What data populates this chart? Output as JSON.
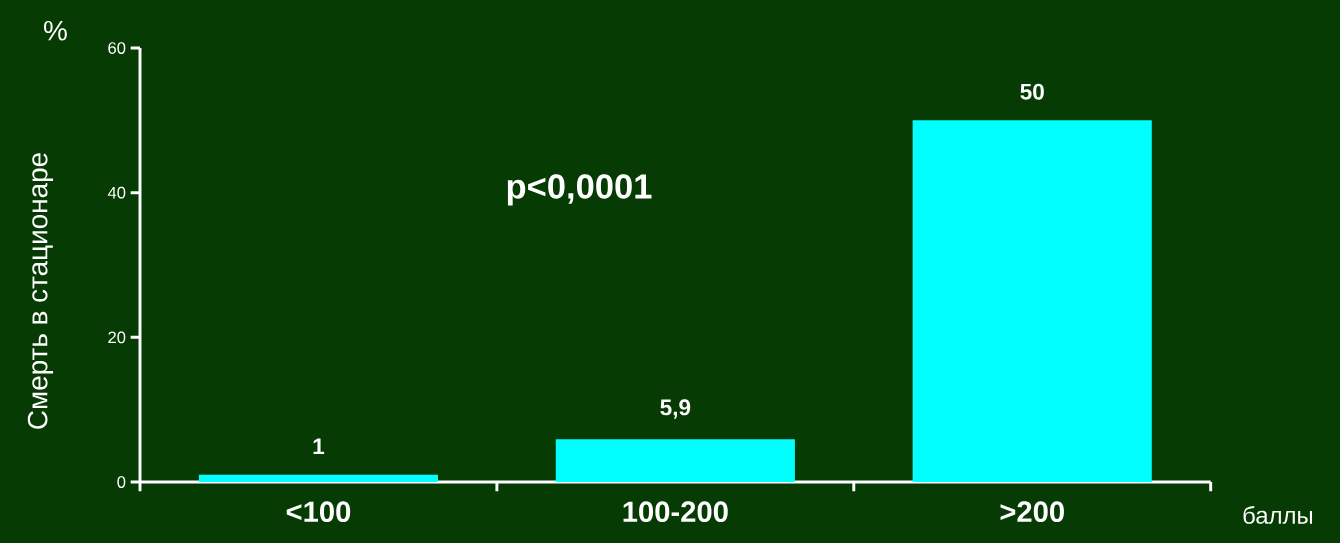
{
  "chart_data": {
    "type": "bar",
    "ylabel": "Смерть в стационаре",
    "xlabel": "баллы",
    "categories": [
      "<100",
      "100-200",
      ">200"
    ],
    "values": [
      1,
      5.9,
      50
    ],
    "value_labels": [
      "1",
      "5,9",
      "50"
    ],
    "color": "#00ffff",
    "ylim": [
      0,
      60
    ],
    "yticks": [
      0,
      20,
      40,
      60
    ],
    "grid": false,
    "annotations": [
      "%",
      "p<0,0001"
    ]
  }
}
